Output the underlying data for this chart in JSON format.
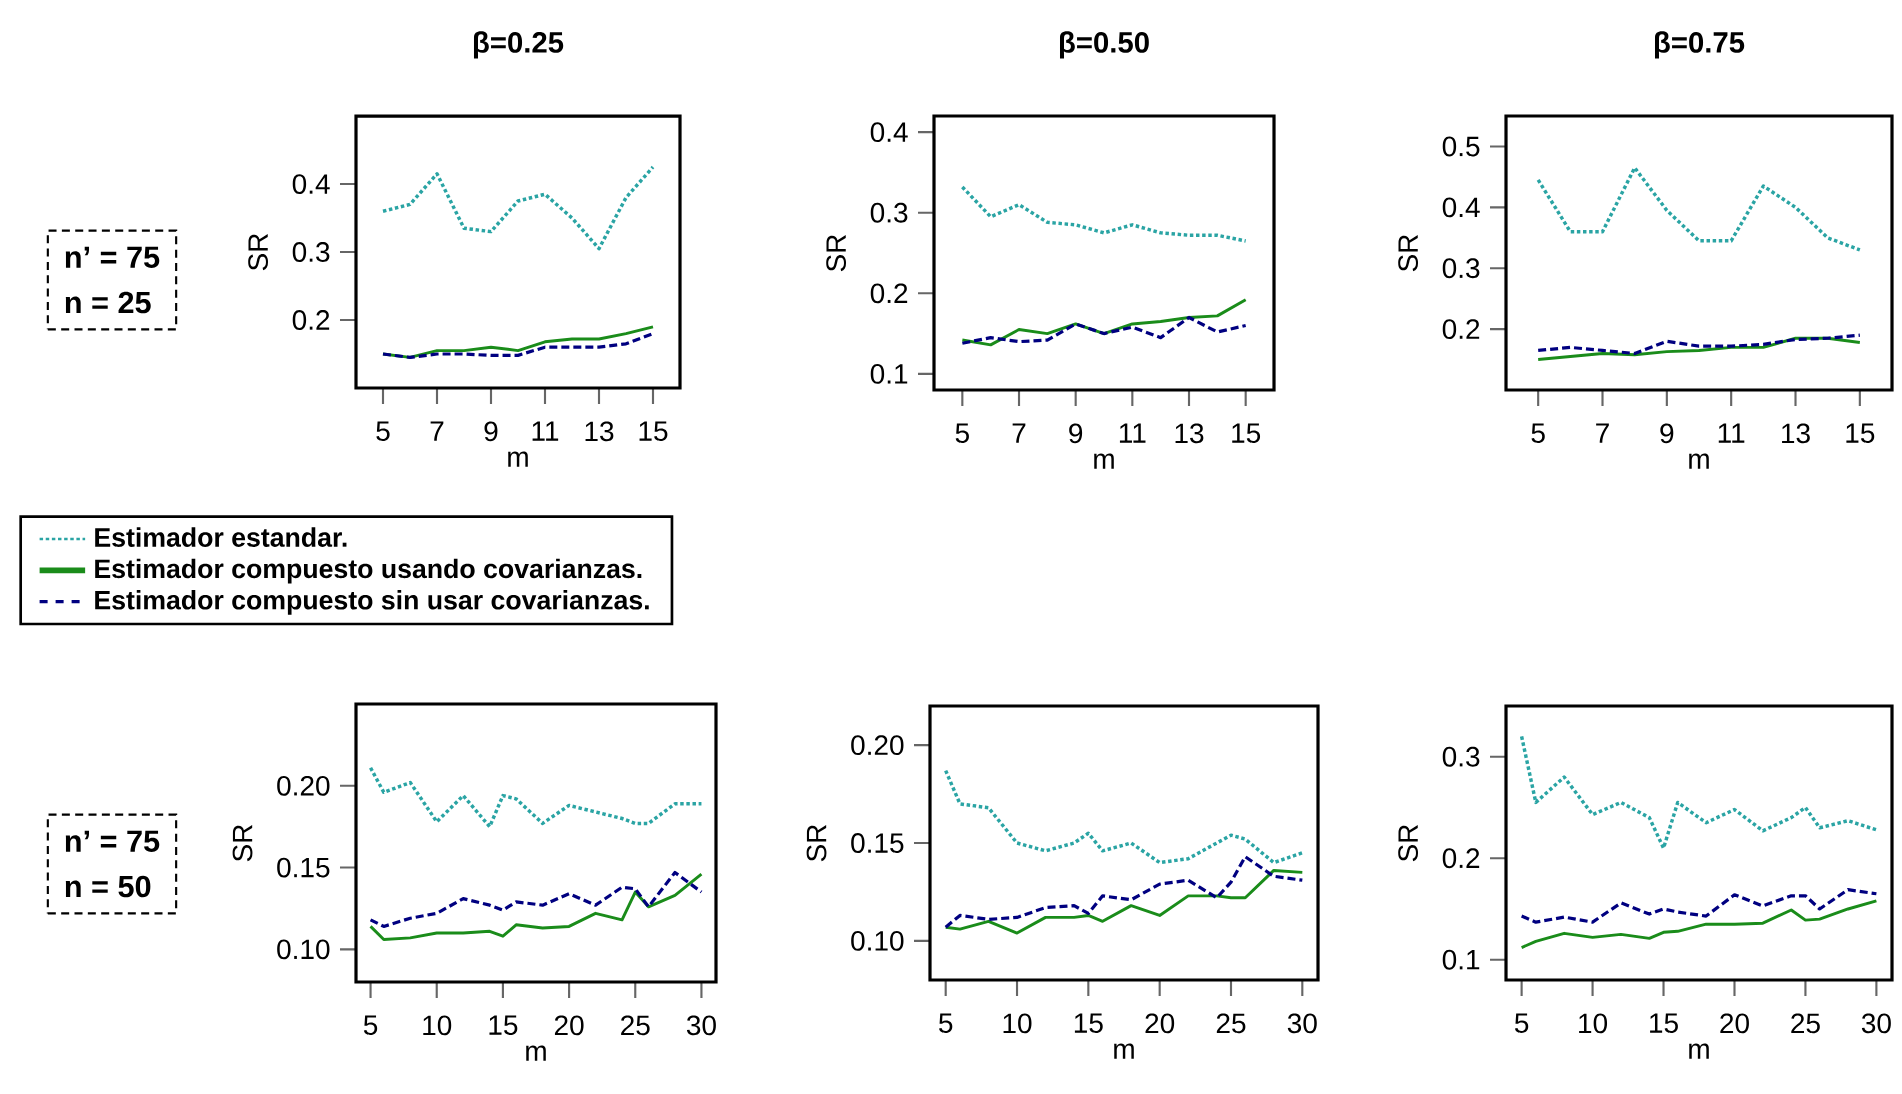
{
  "chart_data": [
    {
      "type": "line",
      "title": "β=0.25",
      "xlabel": "m",
      "ylabel": "SR",
      "xlim": [
        4,
        16
      ],
      "ylim": [
        0.1,
        0.5
      ],
      "xticks": [
        5,
        7,
        9,
        11,
        13,
        15
      ],
      "yticks": [
        0.2,
        0.3,
        0.4
      ],
      "legend": "bottom left",
      "annotations": [
        "n’ = 75",
        "n = 25"
      ],
      "x": [
        5,
        6,
        7,
        8,
        9,
        10,
        11,
        12,
        13,
        14,
        15
      ],
      "series": [
        {
          "name": "Estimador estandar.",
          "color": "#2aa4a4",
          "line_style": "dotted",
          "values": [
            0.36,
            0.37,
            0.415,
            0.335,
            0.33,
            0.375,
            0.385,
            0.35,
            0.305,
            0.38,
            0.425
          ]
        },
        {
          "name": "Estimador compuesto usando covarianzas.",
          "color": "#1a8c1a",
          "line_style": "solid",
          "values": [
            0.15,
            0.145,
            0.155,
            0.155,
            0.16,
            0.155,
            0.168,
            0.172,
            0.172,
            0.18,
            0.19
          ]
        },
        {
          "name": "Estimador compuesto sin usar covarianzas.",
          "color": "#000080",
          "line_style": "dashed",
          "values": [
            0.15,
            0.145,
            0.15,
            0.15,
            0.148,
            0.148,
            0.16,
            0.16,
            0.16,
            0.165,
            0.18
          ]
        }
      ]
    },
    {
      "type": "line",
      "title": "β=0.50",
      "xlabel": "m",
      "ylabel": "SR",
      "xlim": [
        4,
        16
      ],
      "ylim": [
        0.08,
        0.42
      ],
      "xticks": [
        5,
        7,
        9,
        11,
        13,
        15
      ],
      "yticks": [
        0.1,
        0.2,
        0.3,
        0.4
      ],
      "x": [
        5,
        6,
        7,
        8,
        9,
        10,
        11,
        12,
        13,
        14,
        15
      ],
      "series": [
        {
          "color": "#2aa4a4",
          "line_style": "dotted",
          "values": [
            0.332,
            0.295,
            0.31,
            0.288,
            0.285,
            0.275,
            0.285,
            0.275,
            0.272,
            0.272,
            0.265
          ]
        },
        {
          "color": "#1a8c1a",
          "line_style": "solid",
          "values": [
            0.142,
            0.136,
            0.155,
            0.15,
            0.162,
            0.15,
            0.162,
            0.165,
            0.17,
            0.172,
            0.192
          ]
        },
        {
          "color": "#000080",
          "line_style": "dashed",
          "values": [
            0.138,
            0.145,
            0.14,
            0.142,
            0.162,
            0.15,
            0.158,
            0.145,
            0.17,
            0.152,
            0.16
          ]
        }
      ]
    },
    {
      "type": "line",
      "title": "β=0.75",
      "xlabel": "m",
      "ylabel": "SR",
      "xlim": [
        4,
        16
      ],
      "ylim": [
        0.1,
        0.55
      ],
      "xticks": [
        5,
        7,
        9,
        11,
        13,
        15
      ],
      "yticks": [
        0.2,
        0.3,
        0.4,
        0.5
      ],
      "x": [
        5,
        6,
        7,
        8,
        9,
        10,
        11,
        12,
        13,
        14,
        15
      ],
      "series": [
        {
          "color": "#2aa4a4",
          "line_style": "dotted",
          "values": [
            0.445,
            0.36,
            0.36,
            0.465,
            0.395,
            0.345,
            0.345,
            0.435,
            0.4,
            0.35,
            0.33
          ]
        },
        {
          "color": "#1a8c1a",
          "line_style": "solid",
          "values": [
            0.15,
            0.155,
            0.16,
            0.158,
            0.163,
            0.165,
            0.17,
            0.17,
            0.185,
            0.185,
            0.178
          ]
        },
        {
          "color": "#000080",
          "line_style": "dashed",
          "values": [
            0.165,
            0.17,
            0.165,
            0.16,
            0.18,
            0.172,
            0.172,
            0.175,
            0.183,
            0.185,
            0.19
          ]
        }
      ]
    },
    {
      "type": "line",
      "xlabel": "m",
      "ylabel": "SR",
      "xlim": [
        3.9,
        31.1
      ],
      "ylim": [
        0.08,
        0.25
      ],
      "xticks": [
        5,
        10,
        15,
        20,
        25,
        30
      ],
      "yticks": [
        {
          "value": 0.1,
          "label": "0.10"
        },
        {
          "value": 0.15,
          "label": "0.15"
        },
        {
          "value": 0.2,
          "label": "0.20"
        }
      ],
      "annotations": [
        "n’ = 75",
        "n = 50"
      ],
      "x": [
        5,
        6,
        8,
        10,
        12,
        14,
        15,
        16,
        18,
        20,
        22,
        24,
        25,
        26,
        28,
        30
      ],
      "series": [
        {
          "color": "#2aa4a4",
          "line_style": "dotted",
          "values": [
            0.211,
            0.196,
            0.202,
            0.178,
            0.194,
            0.175,
            0.194,
            0.192,
            0.177,
            0.188,
            0.184,
            0.18,
            0.177,
            0.177,
            0.189,
            0.189
          ]
        },
        {
          "color": "#1a8c1a",
          "line_style": "solid",
          "values": [
            0.114,
            0.106,
            0.107,
            0.11,
            0.11,
            0.111,
            0.108,
            0.115,
            0.113,
            0.114,
            0.122,
            0.118,
            0.135,
            0.126,
            0.133,
            0.146
          ]
        },
        {
          "color": "#000080",
          "line_style": "dashed",
          "values": [
            0.118,
            0.114,
            0.119,
            0.122,
            0.131,
            0.127,
            0.124,
            0.129,
            0.127,
            0.134,
            0.127,
            0.138,
            0.137,
            0.126,
            0.147,
            0.135
          ]
        }
      ]
    },
    {
      "type": "line",
      "xlabel": "m",
      "ylabel": "SR",
      "xlim": [
        3.9,
        31.1
      ],
      "ylim": [
        0.08,
        0.22
      ],
      "xticks": [
        5,
        10,
        15,
        20,
        25,
        30
      ],
      "yticks": [
        {
          "value": 0.1,
          "label": "0.10"
        },
        {
          "value": 0.15,
          "label": "0.15"
        },
        {
          "value": 0.2,
          "label": "0.20"
        }
      ],
      "x": [
        5,
        6,
        8,
        10,
        12,
        14,
        15,
        16,
        18,
        20,
        22,
        24,
        25,
        26,
        28,
        30
      ],
      "series": [
        {
          "color": "#2aa4a4",
          "line_style": "dotted",
          "values": [
            0.187,
            0.17,
            0.168,
            0.15,
            0.146,
            0.15,
            0.155,
            0.146,
            0.15,
            0.14,
            0.142,
            0.15,
            0.154,
            0.152,
            0.14,
            0.145
          ]
        },
        {
          "color": "#1a8c1a",
          "line_style": "solid",
          "values": [
            0.107,
            0.106,
            0.11,
            0.104,
            0.112,
            0.112,
            0.113,
            0.11,
            0.118,
            0.113,
            0.123,
            0.123,
            0.122,
            0.122,
            0.136,
            0.135
          ]
        },
        {
          "color": "#000080",
          "line_style": "dashed",
          "values": [
            0.107,
            0.113,
            0.111,
            0.112,
            0.117,
            0.118,
            0.114,
            0.123,
            0.121,
            0.129,
            0.131,
            0.122,
            0.13,
            0.143,
            0.133,
            0.131
          ]
        }
      ]
    },
    {
      "type": "line",
      "xlabel": "m",
      "ylabel": "SR",
      "xlim": [
        3.9,
        31.1
      ],
      "ylim": [
        0.08,
        0.35
      ],
      "xticks": [
        5,
        10,
        15,
        20,
        25,
        30
      ],
      "yticks": [
        0.1,
        0.2,
        0.3
      ],
      "x": [
        5,
        6,
        8,
        10,
        12,
        14,
        15,
        16,
        18,
        20,
        22,
        24,
        25,
        26,
        28,
        30
      ],
      "series": [
        {
          "color": "#2aa4a4",
          "line_style": "dotted",
          "values": [
            0.32,
            0.255,
            0.28,
            0.243,
            0.255,
            0.24,
            0.21,
            0.255,
            0.235,
            0.248,
            0.227,
            0.24,
            0.25,
            0.23,
            0.237,
            0.228
          ]
        },
        {
          "color": "#1a8c1a",
          "line_style": "solid",
          "values": [
            0.112,
            0.118,
            0.126,
            0.122,
            0.125,
            0.121,
            0.127,
            0.128,
            0.135,
            0.135,
            0.136,
            0.149,
            0.139,
            0.14,
            0.15,
            0.158
          ]
        },
        {
          "color": "#000080",
          "line_style": "dashed",
          "values": [
            0.143,
            0.137,
            0.142,
            0.137,
            0.156,
            0.145,
            0.15,
            0.147,
            0.143,
            0.164,
            0.153,
            0.163,
            0.163,
            0.15,
            0.169,
            0.165
          ]
        }
      ]
    }
  ]
}
